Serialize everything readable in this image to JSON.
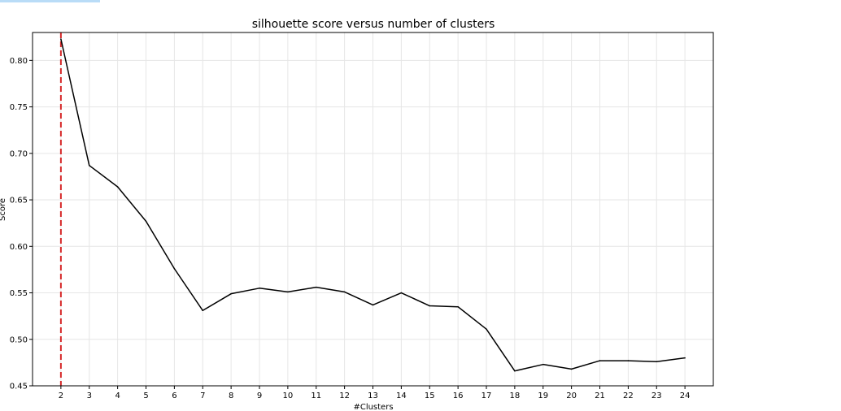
{
  "chart_data": {
    "type": "line",
    "title": "silhouette score versus number of clusters",
    "xlabel": "#Clusters",
    "ylabel": "Score",
    "x": [
      2,
      3,
      4,
      5,
      6,
      7,
      8,
      9,
      10,
      11,
      12,
      13,
      14,
      15,
      16,
      17,
      18,
      19,
      20,
      21,
      22,
      23,
      24
    ],
    "series": [
      {
        "values": [
          0.823,
          0.687,
          0.664,
          0.627,
          0.576,
          0.531,
          0.549,
          0.555,
          0.551,
          0.556,
          0.551,
          0.537,
          0.55,
          0.536,
          0.535,
          0.511,
          0.466,
          0.473,
          0.468,
          0.477,
          0.477,
          0.476,
          0.48
        ],
        "color": "#000000"
      }
    ],
    "vline": {
      "x": 2,
      "color": "#d62728",
      "style": "dashed"
    },
    "xlim": [
      1,
      25
    ],
    "ylim": [
      0.45,
      0.83
    ],
    "xticks": [
      "2",
      "3",
      "4",
      "5",
      "6",
      "7",
      "8",
      "9",
      "10",
      "11",
      "12",
      "13",
      "14",
      "15",
      "16",
      "17",
      "18",
      "19",
      "20",
      "21",
      "22",
      "23",
      "24"
    ],
    "yticks": [
      "0.45",
      "0.50",
      "0.55",
      "0.60",
      "0.65",
      "0.70",
      "0.75",
      "0.80"
    ],
    "grid": true
  }
}
